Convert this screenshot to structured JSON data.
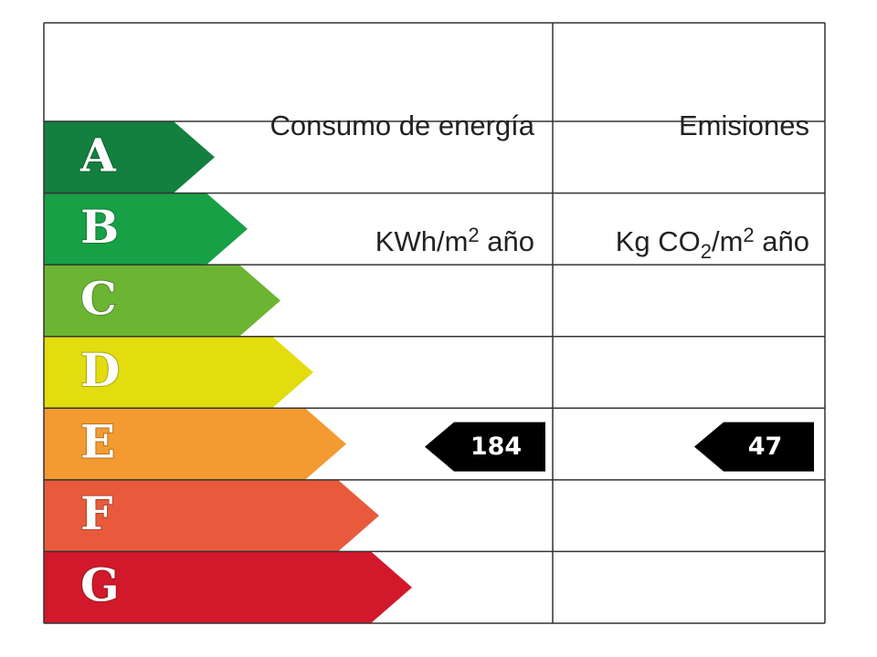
{
  "header": {
    "energy": {
      "title": "Consumo de energía",
      "unit": [
        "KWh/m",
        "2",
        " año"
      ]
    },
    "emissions": {
      "title": "Emisiones",
      "unit": [
        "Kg CO",
        "2",
        "/m",
        "2",
        " año"
      ]
    }
  },
  "grades": [
    {
      "letter": "A",
      "color": "#13803f"
    },
    {
      "letter": "B",
      "color": "#17a046"
    },
    {
      "letter": "C",
      "color": "#6cb533"
    },
    {
      "letter": "D",
      "color": "#e3dc0f"
    },
    {
      "letter": "E",
      "color": "#f39a30"
    },
    {
      "letter": "F",
      "color": "#e95a3c"
    },
    {
      "letter": "G",
      "color": "#d2192b"
    }
  ],
  "ratings": {
    "energy": {
      "grade": "E",
      "value": 184
    },
    "emissions": {
      "grade": "E",
      "value": 47
    }
  }
}
